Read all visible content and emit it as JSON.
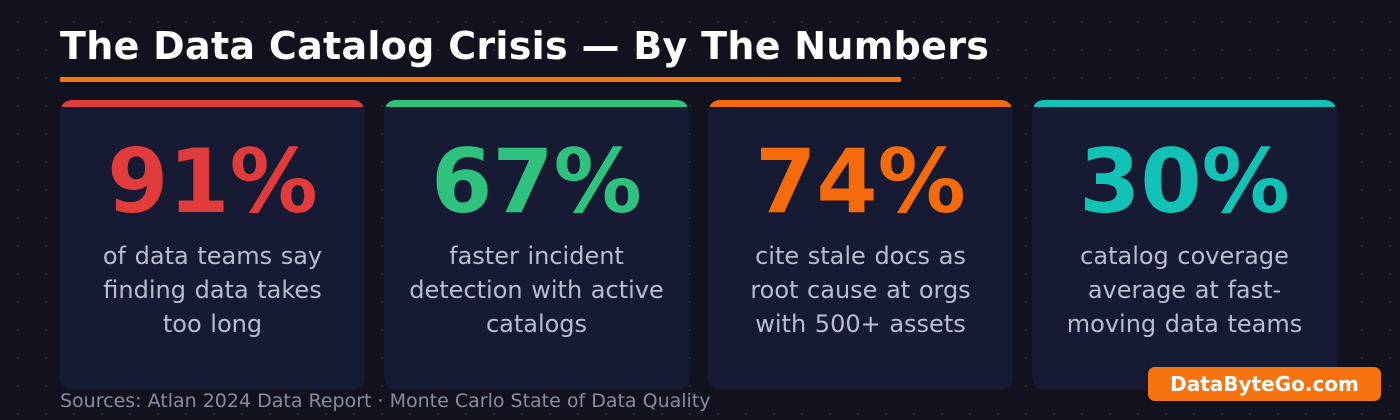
{
  "title": "The Data Catalog Crisis — By The Numbers",
  "colors": {
    "background": "#12121f",
    "card_background": "#171a33",
    "accent": "#f5740f"
  },
  "cards": [
    {
      "value": "91%",
      "lines": [
        "of data teams say",
        "finding data takes",
        "too long"
      ],
      "color": "#e03c3c"
    },
    {
      "value": "67%",
      "lines": [
        "faster incident",
        "detection with active",
        "catalogs"
      ],
      "color": "#2ec27e"
    },
    {
      "value": "74%",
      "lines": [
        "cite stale docs as",
        "root cause at orgs",
        "with 500+ assets"
      ],
      "color": "#f56a0a"
    },
    {
      "value": "30%",
      "lines": [
        "catalog coverage",
        "average at fast-",
        "moving data teams"
      ],
      "color": "#12c2b4"
    }
  ],
  "sources": "Sources: Atlan 2024 Data Report · Monte Carlo State of Data Quality",
  "brand": "DataByteGo.com"
}
